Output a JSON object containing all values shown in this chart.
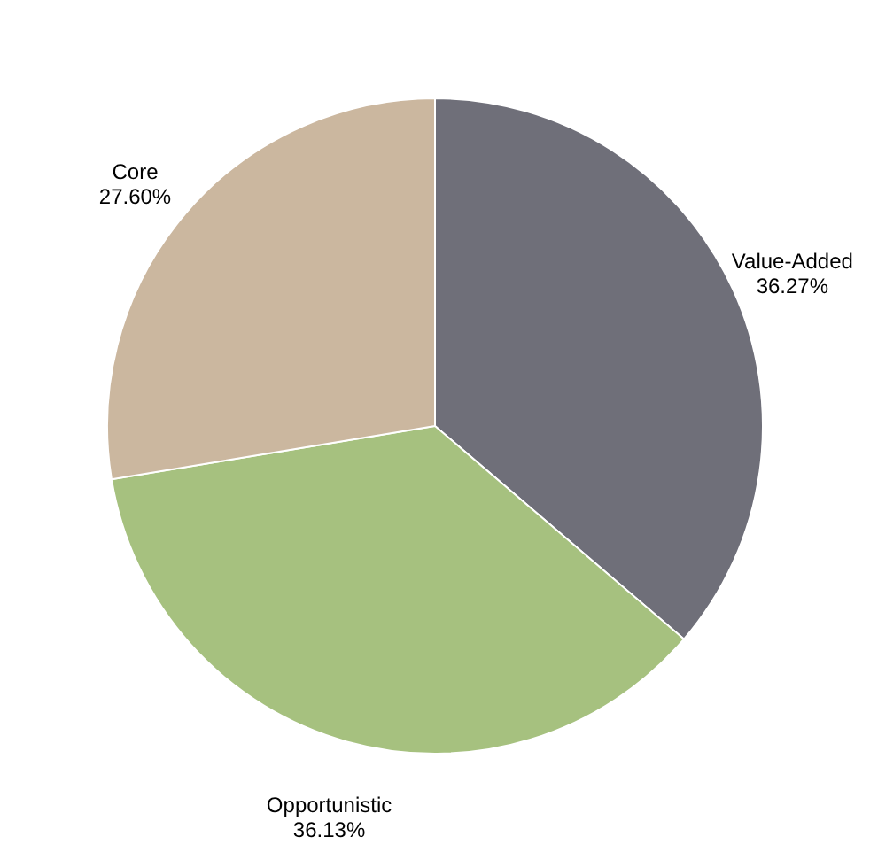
{
  "chart_data": {
    "type": "pie",
    "categories": [
      "Value-Added",
      "Opportunistic",
      "Core"
    ],
    "values": [
      36.27,
      36.13,
      27.6
    ],
    "colors": [
      "#6f6f79",
      "#a6c17f",
      "#cbb79f"
    ],
    "value_labels": [
      "36.27%",
      "36.13%",
      "27.60%"
    ],
    "legend": false
  }
}
